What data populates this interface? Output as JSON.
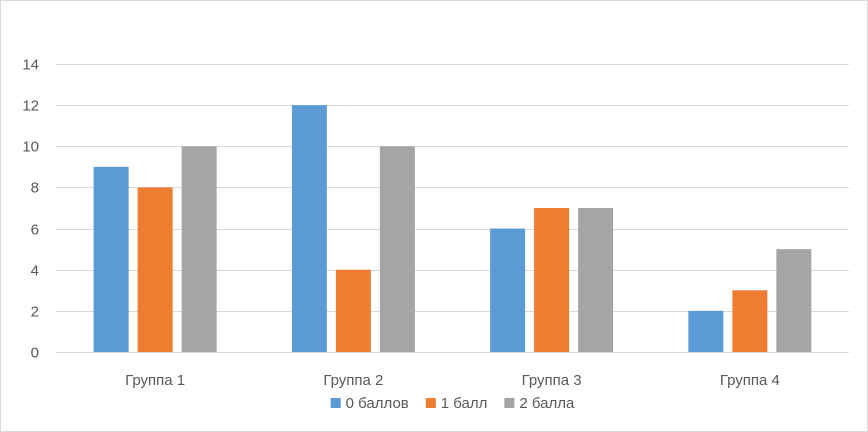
{
  "chart_data": {
    "type": "bar",
    "title": "",
    "xlabel": "",
    "ylabel": "",
    "categories": [
      "Группа 1",
      "Группа 2",
      "Группа 3",
      "Группа 4"
    ],
    "series": [
      {
        "name": "0 баллов",
        "values": [
          9,
          12,
          6,
          2
        ],
        "color": "#5b9bd5"
      },
      {
        "name": "1 балл",
        "values": [
          8,
          4,
          7,
          3
        ],
        "color": "#ed7d31"
      },
      {
        "name": "2 балла",
        "values": [
          10,
          10,
          7,
          5
        ],
        "color": "#a5a5a5"
      }
    ],
    "ylim": [
      0,
      14
    ],
    "yticks": [
      "0",
      "2",
      "4",
      "6",
      "8",
      "10",
      "12",
      "14"
    ],
    "grid": true,
    "gridline_color": "#d9d9d9",
    "axis_label_color": "#595959",
    "legend_position": "bottom"
  }
}
